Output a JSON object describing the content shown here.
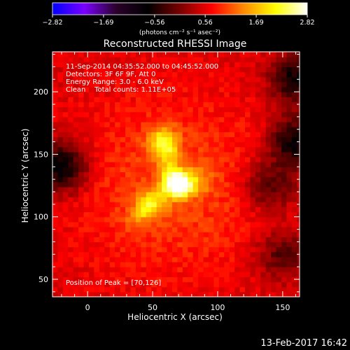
{
  "chart_data": {
    "type": "heatmap",
    "title": "Reconstructed RHESSI Image",
    "xlabel": "Heliocentric X (arcsec)",
    "ylabel": "Heliocentric Y (arcsec)",
    "xlim": [
      -27,
      163
    ],
    "ylim": [
      36,
      232
    ],
    "x_ticks": [
      "0",
      "50",
      "100",
      "150"
    ],
    "x_tick_values": [
      0,
      50,
      100,
      150
    ],
    "y_ticks": [
      "50",
      "100",
      "150",
      "200"
    ],
    "y_tick_values": [
      50,
      100,
      150,
      200
    ],
    "colorbar": {
      "label": "(photons cm⁻² s⁻¹ asec⁻²)",
      "ticks": [
        "−2.82",
        "−1.69",
        "−0.56",
        "0.56",
        "1.69",
        "2.82"
      ],
      "tick_values": [
        -2.82,
        -1.69,
        -0.56,
        0.56,
        1.69,
        2.82
      ],
      "range": [
        -2.82,
        2.82
      ],
      "colors": [
        "#0000ff",
        "#7a00ff",
        "#2a002a",
        "#000000",
        "#7a0000",
        "#ff0000",
        "#ff8a00",
        "#ffff00",
        "#ffffff"
      ]
    },
    "annotations": [
      "11-Sep-2014 04:35:52.000 to 04:45:52.000",
      "Detectors: 3F 6F 9F, Att 0",
      "Energy Range: 3.0 - 6.0 keV",
      "Clean    Total counts: 1.11E+05"
    ],
    "peak_label": "Position of Peak = [70,126]",
    "peak": [
      70,
      126
    ],
    "sources": [
      {
        "x": 70,
        "y": 126,
        "strength": 2.82
      },
      {
        "x": 57,
        "y": 160,
        "strength": 1.75
      },
      {
        "x": 47,
        "y": 109,
        "strength": 1.3
      },
      {
        "x": 83,
        "y": 129,
        "strength": 1.2
      }
    ],
    "background_level": 0.5,
    "faint_regions": [
      {
        "x": -20,
        "y": 140,
        "level": -0.9
      },
      {
        "x": 160,
        "y": 160,
        "level": -0.8
      },
      {
        "x": 160,
        "y": 210,
        "level": -0.7
      },
      {
        "x": 140,
        "y": 125,
        "level": -0.4
      },
      {
        "x": 150,
        "y": 70,
        "level": -0.3
      }
    ]
  },
  "footer": {
    "timestamp": "13-Feb-2017 16:42"
  },
  "colors": {
    "background": "#000000",
    "text": "#ffffff"
  }
}
